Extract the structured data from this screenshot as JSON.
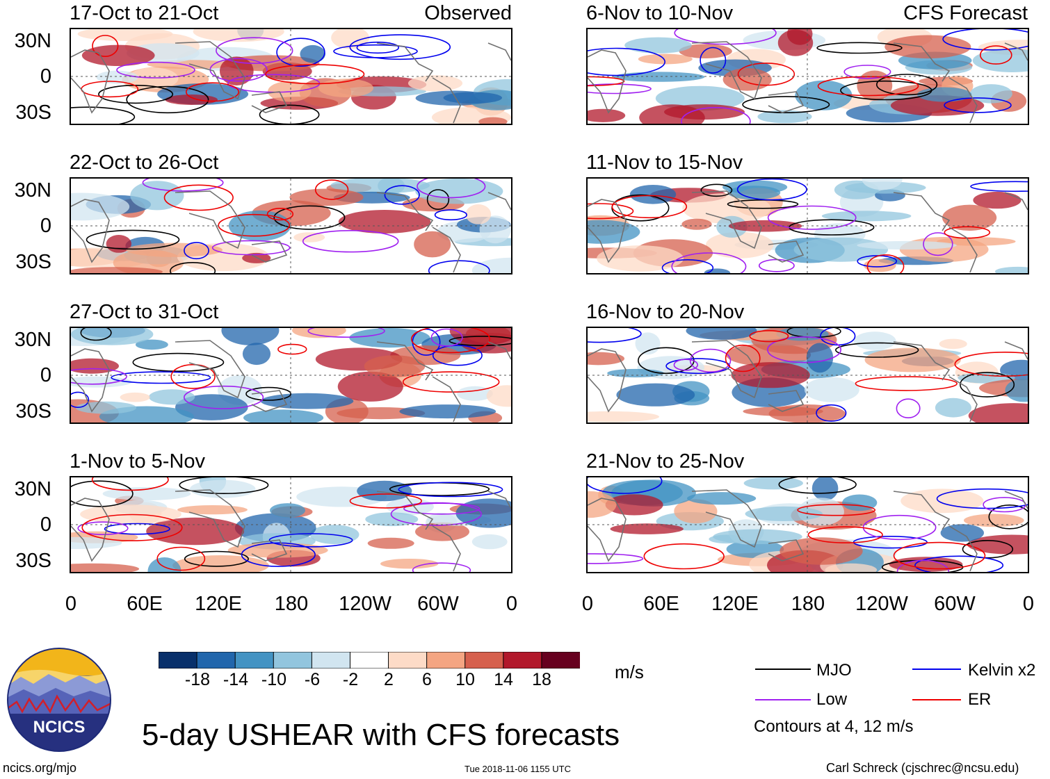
{
  "main_title": "5-day USHEAR with CFS forecasts",
  "left_column_tag": "Observed",
  "right_column_tag": "CFS Forecast",
  "panels_left": [
    {
      "title": "17-Oct to 21-Oct"
    },
    {
      "title": "22-Oct to 26-Oct"
    },
    {
      "title": "27-Oct to 31-Oct"
    },
    {
      "title": "1-Nov to 5-Nov"
    }
  ],
  "panels_right": [
    {
      "title": "6-Nov to 10-Nov"
    },
    {
      "title": "11-Nov to 15-Nov"
    },
    {
      "title": "16-Nov to 20-Nov"
    },
    {
      "title": "21-Nov to 25-Nov"
    }
  ],
  "lat_labels": [
    "30N",
    "0",
    "30S"
  ],
  "lon_labels": [
    "0",
    "60E",
    "120E",
    "180",
    "120W",
    "60W",
    "0"
  ],
  "colorbar": {
    "unit": "m/s",
    "labels": [
      "-18",
      "-14",
      "-10",
      "-6",
      "-2",
      "2",
      "6",
      "10",
      "14",
      "18"
    ],
    "colors": [
      "#08306b",
      "#2166ac",
      "#4393c3",
      "#92c5de",
      "#d1e5f0",
      "#ffffff",
      "#fddbc7",
      "#f4a582",
      "#d6604d",
      "#b2182b",
      "#67001f"
    ]
  },
  "legend": {
    "items": [
      {
        "label": "MJO",
        "color": "#000000"
      },
      {
        "label": "Kelvin x2",
        "color": "#0000ee"
      },
      {
        "label": "Low",
        "color": "#a020f0"
      },
      {
        "label": "ER",
        "color": "#ee0000"
      }
    ],
    "contour_note": "Contours at 4, 12 m/s"
  },
  "logo": {
    "text": "NCICS"
  },
  "footer": {
    "url": "ncics.org/mjo",
    "timestamp": "Tue 2018-11-06 1155 UTC",
    "credit": "Carl Schreck (cjschrec@ncsu.edu)"
  }
}
